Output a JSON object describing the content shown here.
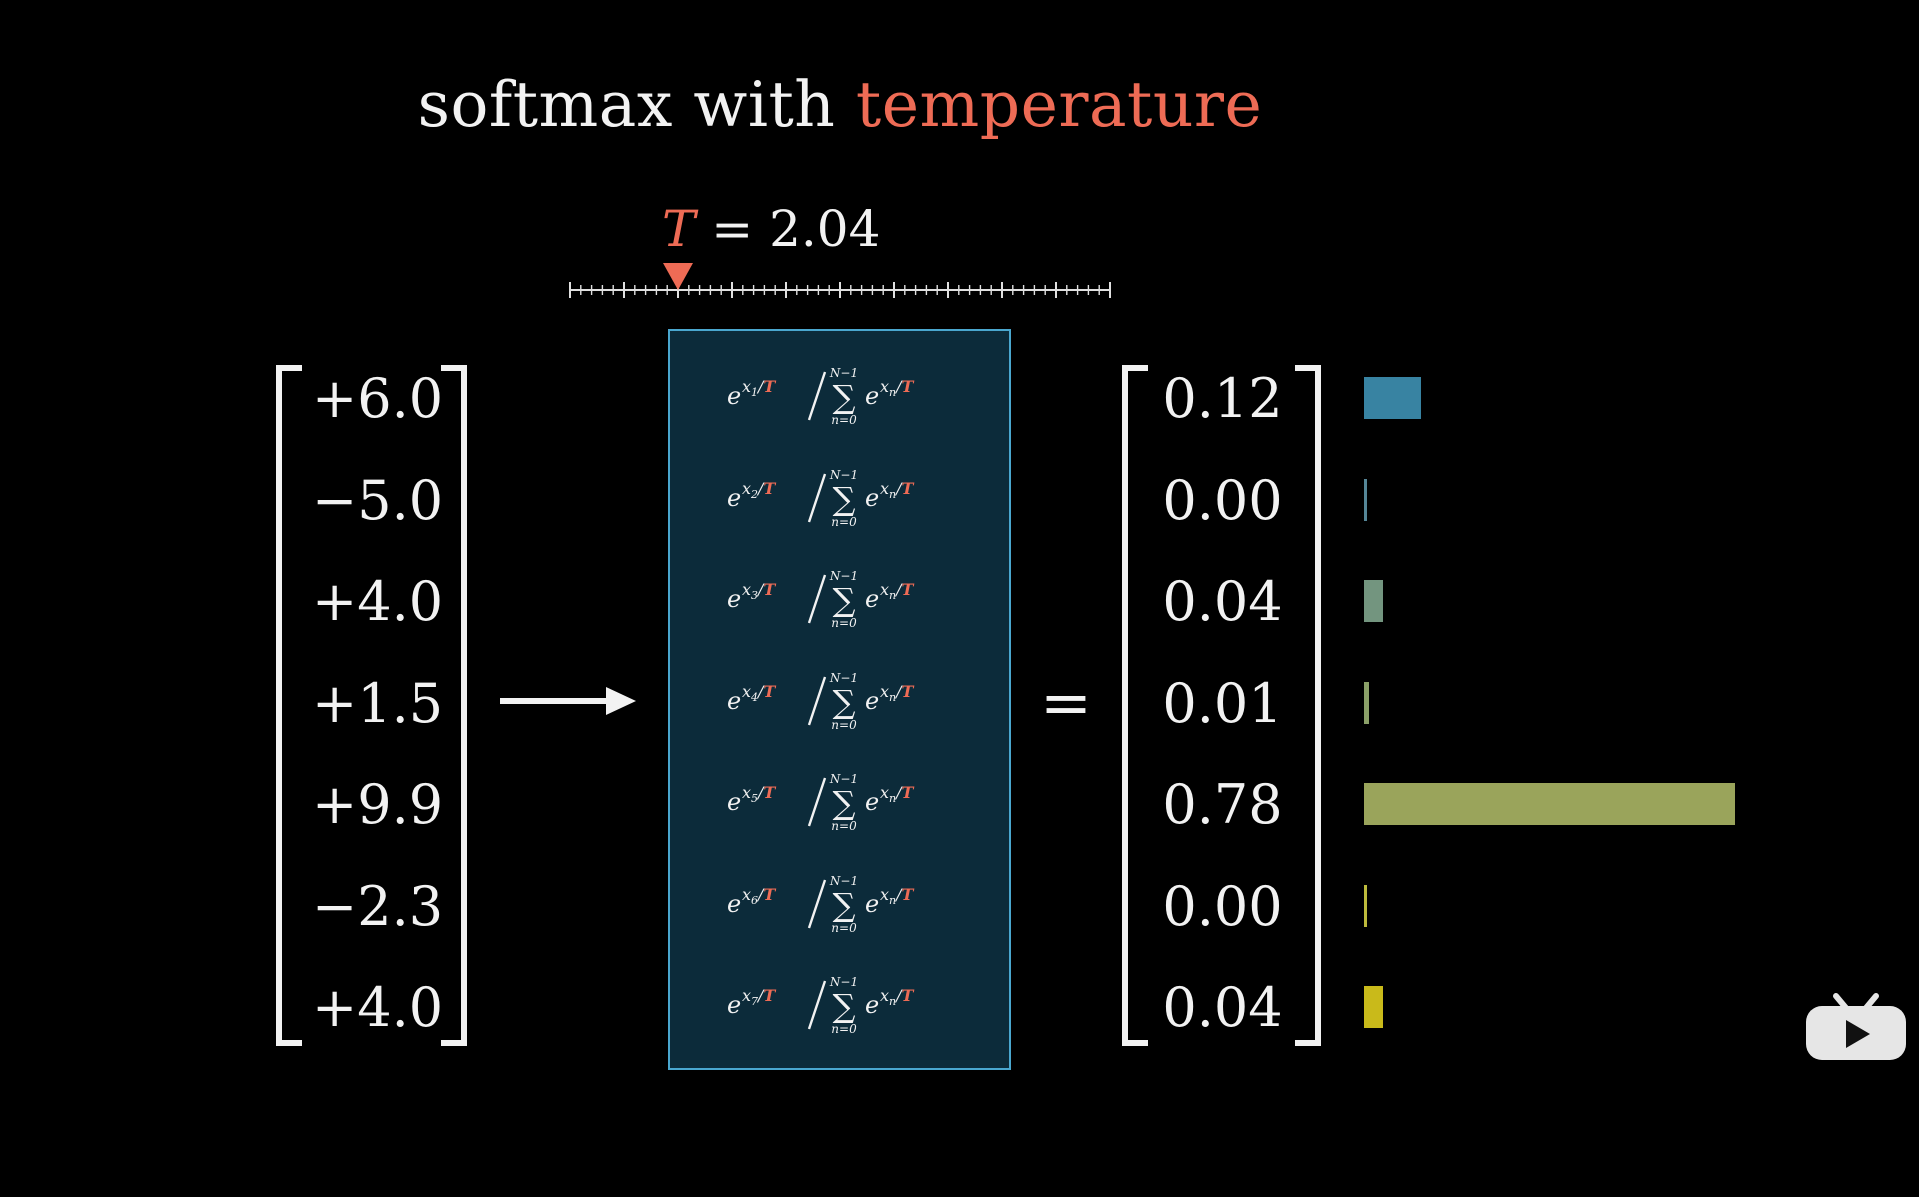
{
  "title": {
    "prefix": "softmax with",
    "highlight": "temperature"
  },
  "temperature": {
    "symbol": "T",
    "equals": "=",
    "value": "2.04",
    "slider_fraction": 0.2
  },
  "input_vector": [
    "+6.0",
    "−5.0",
    "+4.0",
    "+1.5",
    "+9.9",
    "−2.3",
    "+4.0"
  ],
  "formulas": [
    {
      "base": "e",
      "subscript": "1",
      "over": "T",
      "sum_top": "N−1",
      "sum_bottom": "n=0",
      "sum_sub": "n"
    },
    {
      "base": "e",
      "subscript": "2",
      "over": "T",
      "sum_top": "N−1",
      "sum_bottom": "n=0",
      "sum_sub": "n"
    },
    {
      "base": "e",
      "subscript": "3",
      "over": "T",
      "sum_top": "N−1",
      "sum_bottom": "n=0",
      "sum_sub": "n"
    },
    {
      "base": "e",
      "subscript": "4",
      "over": "T",
      "sum_top": "N−1",
      "sum_bottom": "n=0",
      "sum_sub": "n"
    },
    {
      "base": "e",
      "subscript": "5",
      "over": "T",
      "sum_top": "N−1",
      "sum_bottom": "n=0",
      "sum_sub": "n"
    },
    {
      "base": "e",
      "subscript": "6",
      "over": "T",
      "sum_top": "N−1",
      "sum_bottom": "n=0",
      "sum_sub": "n"
    },
    {
      "base": "e",
      "subscript": "7",
      "over": "T",
      "sum_top": "N−1",
      "sum_bottom": "n=0",
      "sum_sub": "n"
    }
  ],
  "equals_sign": "=",
  "output_vector": [
    "0.12",
    "0.00",
    "0.04",
    "0.01",
    "0.78",
    "0.00",
    "0.04"
  ],
  "bar_colors": [
    "#3b8bab",
    "#5a8ea0",
    "#7a9e86",
    "#93a96e",
    "#a3ad60",
    "#c8c440",
    "#d4c41c"
  ],
  "colors": {
    "accent": "#ee6b55",
    "box_fill": "#0c2b3a",
    "box_border": "#4aa7cf"
  },
  "logo_icon": "play-tv-icon"
}
